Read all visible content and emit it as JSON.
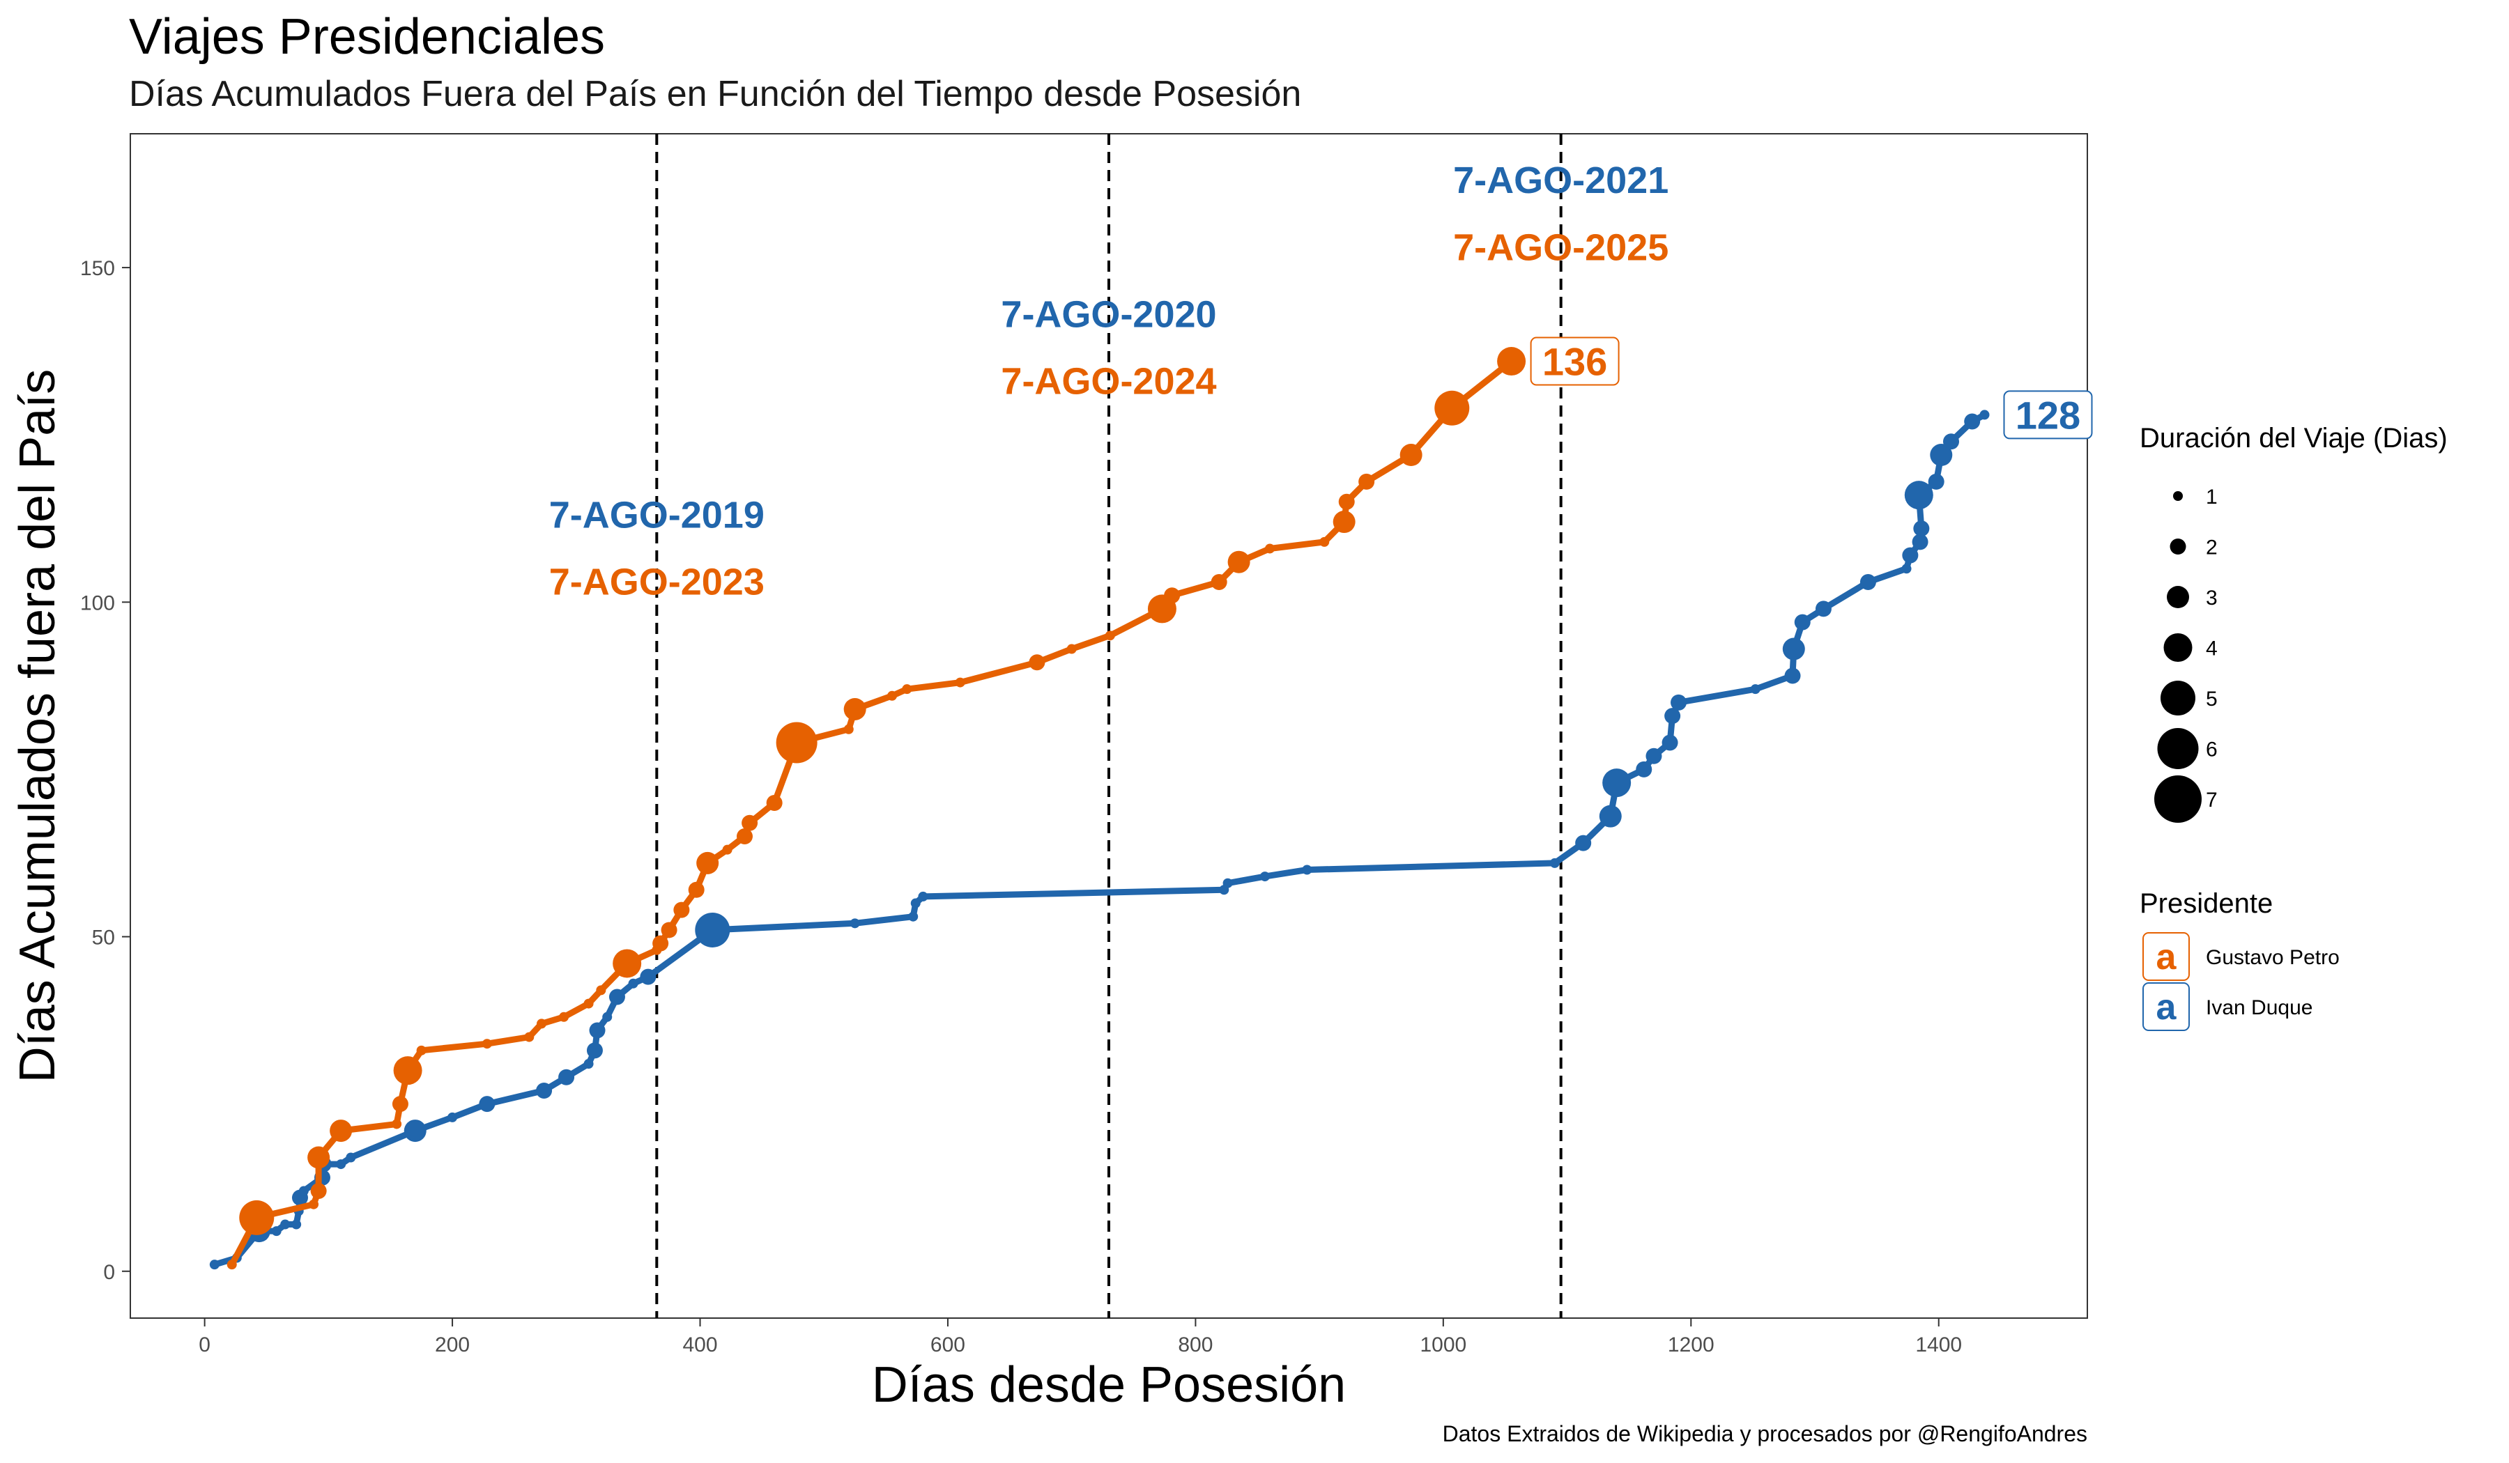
{
  "title": "Viajes Presidenciales",
  "subtitle": "Días Acumulados Fuera del País en Función del Tiempo desde Posesión",
  "caption": "Datos Extraidos de Wikipedia y procesados por @RengifoAndres",
  "colors": {
    "petro": "#e66101",
    "duque": "#2166ac"
  },
  "chart_data": {
    "type": "line",
    "xlabel": "Días desde Posesión",
    "ylabel": "Días Acumulados fuera del País",
    "xlim": [
      -60,
      1520
    ],
    "ylim": [
      -7,
      170
    ],
    "xticks": [
      0,
      200,
      400,
      600,
      800,
      1000,
      1200,
      1400
    ],
    "yticks": [
      0,
      50,
      100,
      150
    ],
    "grid": false,
    "vlines": [
      {
        "x": 365,
        "label1": "7-AGO-2019",
        "label2": "7-AGO-2023",
        "label_y1": 113,
        "label_y2": 103
      },
      {
        "x": 730,
        "label1": "7-AGO-2020",
        "label2": "7-AGO-2024",
        "label_y1": 143,
        "label_y2": 133
      },
      {
        "x": 1095,
        "label1": "7-AGO-2021",
        "label2": "7-AGO-2025",
        "label_y1": 163,
        "label_y2": 153
      }
    ],
    "series": [
      {
        "name": "Ivan Duque",
        "color": "#2166ac",
        "end_label": "128",
        "points": [
          [
            8,
            1,
            1
          ],
          [
            26,
            2,
            1
          ],
          [
            44,
            6,
            3
          ],
          [
            58,
            6,
            1
          ],
          [
            65,
            7,
            1
          ],
          [
            74,
            7,
            1
          ],
          [
            76,
            9,
            1
          ],
          [
            77,
            11,
            2
          ],
          [
            80,
            12,
            1
          ],
          [
            95,
            14,
            2
          ],
          [
            96,
            16,
            2
          ],
          [
            110,
            16,
            1
          ],
          [
            118,
            17,
            1
          ],
          [
            170,
            21,
            3
          ],
          [
            200,
            23,
            1
          ],
          [
            228,
            25,
            2
          ],
          [
            274,
            27,
            2
          ],
          [
            292,
            29,
            2
          ],
          [
            310,
            31,
            1
          ],
          [
            315,
            33,
            2
          ],
          [
            317,
            36,
            2
          ],
          [
            325,
            38,
            1
          ],
          [
            333,
            41,
            2
          ],
          [
            346,
            43,
            1
          ],
          [
            358,
            44,
            2
          ],
          [
            410,
            51,
            5
          ],
          [
            525,
            52,
            1
          ],
          [
            572,
            53,
            1
          ],
          [
            574,
            55,
            1
          ],
          [
            580,
            56,
            1
          ],
          [
            823,
            57,
            1
          ],
          [
            826,
            58,
            1
          ],
          [
            856,
            59,
            1
          ],
          [
            890,
            60,
            1
          ],
          [
            1090,
            61,
            1
          ],
          [
            1113,
            64,
            2
          ],
          [
            1135,
            68,
            3
          ],
          [
            1140,
            73,
            4
          ],
          [
            1162,
            75,
            2
          ],
          [
            1170,
            77,
            2
          ],
          [
            1183,
            79,
            2
          ],
          [
            1185,
            83,
            2
          ],
          [
            1190,
            85,
            2
          ],
          [
            1252,
            87,
            1
          ],
          [
            1282,
            89,
            2
          ],
          [
            1283,
            93,
            3
          ],
          [
            1290,
            97,
            2
          ],
          [
            1307,
            99,
            2
          ],
          [
            1343,
            103,
            2
          ],
          [
            1374,
            105,
            1
          ],
          [
            1377,
            107,
            2
          ],
          [
            1385,
            109,
            2
          ],
          [
            1386,
            111,
            2
          ],
          [
            1384,
            116,
            4
          ],
          [
            1398,
            118,
            2
          ],
          [
            1402,
            122,
            3
          ],
          [
            1410,
            124,
            2
          ],
          [
            1427,
            127,
            2
          ],
          [
            1437,
            128,
            1
          ]
        ]
      },
      {
        "name": "Gustavo Petro",
        "color": "#e66101",
        "end_label": "136",
        "points": [
          [
            22,
            1,
            1
          ],
          [
            42,
            8,
            5
          ],
          [
            88,
            10,
            1
          ],
          [
            92,
            12,
            2
          ],
          [
            92,
            17,
            3
          ],
          [
            110,
            21,
            3
          ],
          [
            155,
            22,
            1
          ],
          [
            158,
            25,
            2
          ],
          [
            164,
            30,
            4
          ],
          [
            175,
            33,
            1
          ],
          [
            228,
            34,
            1
          ],
          [
            262,
            35,
            1
          ],
          [
            272,
            37,
            1
          ],
          [
            290,
            38,
            1
          ],
          [
            310,
            40,
            1
          ],
          [
            320,
            42,
            1
          ],
          [
            341,
            46,
            4
          ],
          [
            365,
            48,
            1
          ],
          [
            368,
            49,
            2
          ],
          [
            375,
            51,
            2
          ],
          [
            385,
            54,
            2
          ],
          [
            397,
            57,
            2
          ],
          [
            406,
            61,
            3
          ],
          [
            422,
            63,
            1
          ],
          [
            436,
            65,
            2
          ],
          [
            440,
            67,
            2
          ],
          [
            460,
            70,
            2
          ],
          [
            478,
            79,
            6
          ],
          [
            520,
            81,
            1
          ],
          [
            525,
            84,
            3
          ],
          [
            555,
            86,
            1
          ],
          [
            567,
            87,
            1
          ],
          [
            610,
            88,
            1
          ],
          [
            672,
            91,
            2
          ],
          [
            700,
            93,
            1
          ],
          [
            731,
            95,
            1
          ],
          [
            773,
            99,
            4
          ],
          [
            781,
            101,
            2
          ],
          [
            819,
            103,
            2
          ],
          [
            835,
            106,
            3
          ],
          [
            860,
            108,
            1
          ],
          [
            904,
            109,
            1
          ],
          [
            920,
            112,
            3
          ],
          [
            922,
            115,
            2
          ],
          [
            938,
            118,
            2
          ],
          [
            974,
            122,
            3
          ],
          [
            1007,
            129,
            5
          ],
          [
            1055,
            136,
            4
          ]
        ]
      }
    ],
    "legend_size": {
      "title": "Duración del Viaje (Dias)",
      "values": [
        1,
        2,
        3,
        4,
        5,
        6,
        7
      ]
    },
    "legend_color": {
      "title": "Presidente",
      "glyph": "a",
      "entries": [
        {
          "label": "Gustavo Petro",
          "color": "#e66101"
        },
        {
          "label": "Ivan Duque",
          "color": "#2166ac"
        }
      ]
    }
  }
}
